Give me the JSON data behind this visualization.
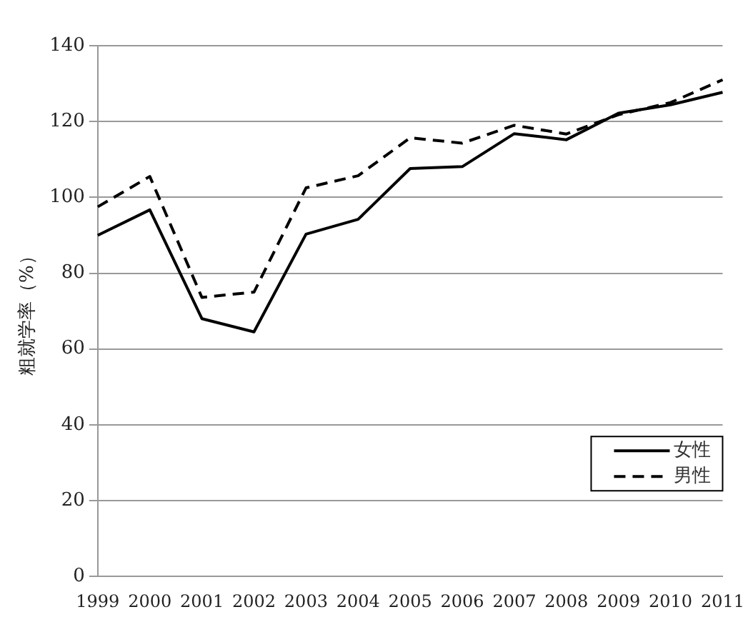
{
  "chart_data": {
    "type": "line",
    "ylabel": "粗就学率（%）",
    "categories": [
      "1999",
      "2000",
      "2001",
      "2002",
      "2003",
      "2004",
      "2005",
      "2006",
      "2007",
      "2008",
      "2009",
      "2010",
      "2011"
    ],
    "series": [
      {
        "name": "女性",
        "color": "#000000",
        "line_style": "solid",
        "values": [
          90,
          96.7,
          68,
          64.5,
          90.3,
          94.2,
          107.6,
          108.1,
          116.8,
          115.2,
          122.2,
          124.4,
          127.7
        ]
      },
      {
        "name": "男性",
        "color": "#000000",
        "line_style": "dashed",
        "values": [
          97.5,
          105.5,
          73.6,
          75,
          102.5,
          105.7,
          115.7,
          114.3,
          119,
          116.7,
          121.8,
          125,
          131
        ]
      }
    ],
    "ylim": [
      0,
      140
    ],
    "yticks": [
      0,
      20,
      40,
      60,
      80,
      100,
      120,
      140
    ],
    "grid": "y",
    "legend": "bottom right",
    "marker": "none"
  }
}
